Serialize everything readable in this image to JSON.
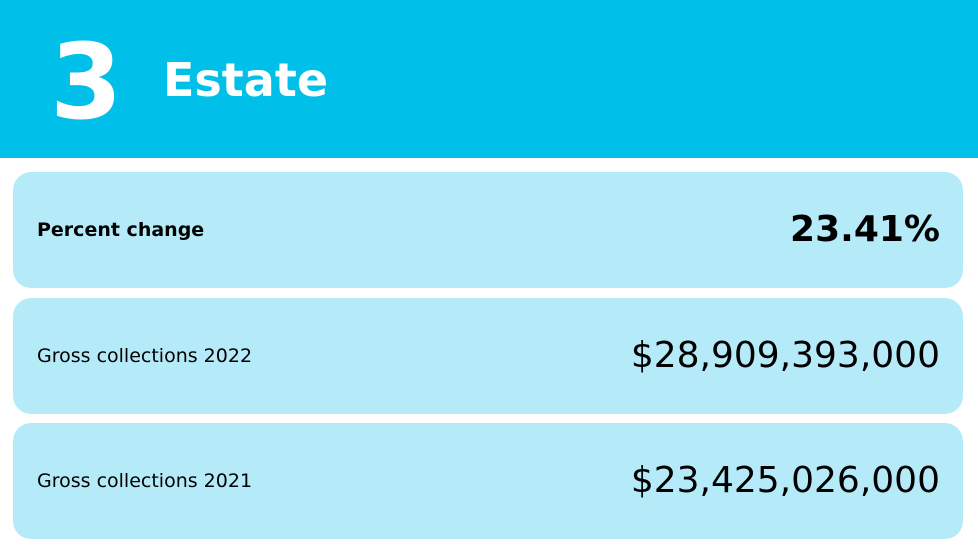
{
  "header": {
    "rank": "3",
    "title": "Estate",
    "background_color": "#00bfe8",
    "text_color": "#ffffff"
  },
  "rows": [
    {
      "label": "Percent change",
      "value": "23.41%"
    },
    {
      "label": "Gross collections 2022",
      "value": "$28,909,393,000"
    },
    {
      "label": "Gross collections 2021",
      "value": "$23,425,026,000"
    }
  ],
  "colors": {
    "card_background": "#b5ebf8",
    "text": "#000000",
    "page_background": "#ffffff"
  }
}
